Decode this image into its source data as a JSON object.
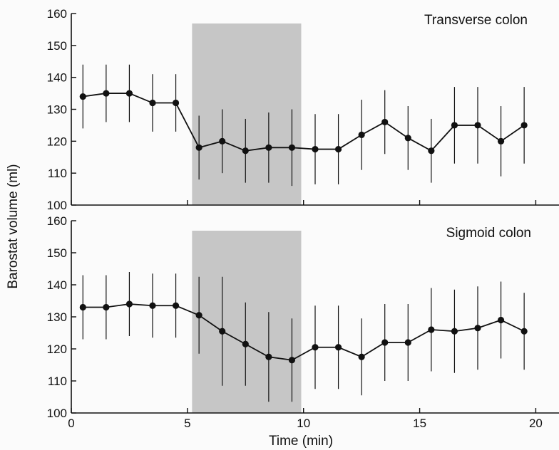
{
  "chart_data": [
    {
      "type": "line",
      "title": "Transverse colon",
      "ylabel": "Barostat volume (ml)",
      "xlim": [
        0,
        21
      ],
      "ylim": [
        100,
        160
      ],
      "xticks": [
        0,
        5,
        10,
        15,
        20
      ],
      "yticks": [
        100,
        110,
        120,
        130,
        140,
        150,
        160
      ],
      "shaded_interval": [
        5.2,
        9.9
      ],
      "x": [
        0.5,
        1.5,
        2.5,
        3.5,
        4.5,
        5.5,
        6.5,
        7.5,
        8.5,
        9.5,
        10.5,
        11.5,
        12.5,
        13.5,
        14.5,
        15.5,
        16.5,
        17.5,
        18.5,
        19.5
      ],
      "values": [
        134,
        135,
        135,
        132,
        132,
        118,
        120,
        117,
        118,
        118,
        117.5,
        117.5,
        122,
        126,
        121,
        117,
        125,
        125,
        120,
        125
      ],
      "errors": [
        10,
        9,
        9,
        9,
        9,
        10,
        10,
        10,
        11,
        12,
        11,
        11,
        11,
        10,
        10,
        10,
        12,
        12,
        11,
        12
      ],
      "grid": false
    },
    {
      "type": "line",
      "title": "Sigmoid colon",
      "ylabel": "Barostat volume (ml)",
      "xlabel": "Time (min)",
      "xlim": [
        0,
        21
      ],
      "ylim": [
        100,
        160
      ],
      "xticks": [
        0,
        5,
        10,
        15,
        20
      ],
      "yticks": [
        100,
        110,
        120,
        130,
        140,
        150,
        160
      ],
      "shaded_interval": [
        5.2,
        9.9
      ],
      "x": [
        0.5,
        1.5,
        2.5,
        3.5,
        4.5,
        5.5,
        6.5,
        7.5,
        8.5,
        9.5,
        10.5,
        11.5,
        12.5,
        13.5,
        14.5,
        15.5,
        16.5,
        17.5,
        18.5,
        19.5
      ],
      "values": [
        133,
        133,
        134,
        133.5,
        133.5,
        130.5,
        125.5,
        121.5,
        117.5,
        116.5,
        120.5,
        120.5,
        117.5,
        122,
        122,
        126,
        125.5,
        126.5,
        129,
        125.5
      ],
      "errors": [
        10,
        10,
        10,
        10,
        10,
        12,
        17,
        13,
        14,
        13,
        13,
        13,
        12,
        12,
        12,
        13,
        13,
        13,
        12,
        12
      ],
      "grid": false
    }
  ],
  "colors": {
    "ink": "#111111",
    "shade": "#c6c6c6",
    "background": "#fbfbfb"
  }
}
